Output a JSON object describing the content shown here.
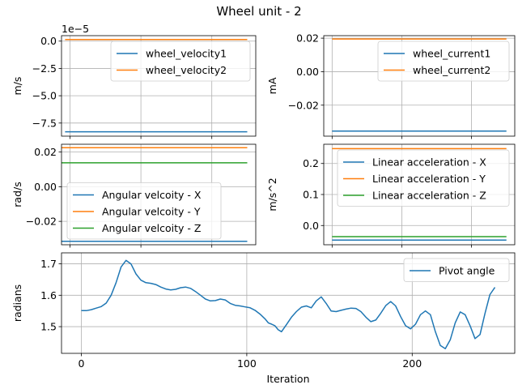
{
  "figure": {
    "title": "Wheel unit - 2"
  },
  "colors": {
    "blue": "#1f77b4",
    "orange": "#ff7f0e",
    "green": "#2ca02c",
    "grid": "#b0b0b0",
    "legend_edge": "#cccccc"
  },
  "chart_data": [
    {
      "id": "p1",
      "type": "line",
      "ylabel": "m/s",
      "offset_text": "1e−5",
      "ylim": [
        -8.7,
        0.5
      ],
      "xlim": [
        -12,
        262
      ],
      "yticks": [
        0.0,
        -2.5,
        -5.0,
        -7.5
      ],
      "ytick_labels": [
        "0.0",
        "−2.5",
        "−5.0",
        "−7.5"
      ],
      "xticks": [
        0,
        100,
        200
      ],
      "show_xtick_labels": false,
      "grid": true,
      "legend": "upper right",
      "series": [
        {
          "name": "wheel_velocity1",
          "color": "#1f77b4",
          "x": [
            -7,
            250
          ],
          "y": [
            -8.3,
            -8.3
          ]
        },
        {
          "name": "wheel_velocity2",
          "color": "#ff7f0e",
          "x": [
            -7,
            250
          ],
          "y": [
            0.15,
            0.15
          ]
        }
      ]
    },
    {
      "id": "p2",
      "type": "line",
      "ylabel": "mA",
      "ylim": [
        -0.0385,
        0.0215
      ],
      "xlim": [
        -12,
        262
      ],
      "yticks": [
        0.02,
        0.0,
        -0.02
      ],
      "ytick_labels": [
        "0.02",
        "0.00",
        "−0.02"
      ],
      "xticks": [
        0,
        100,
        200
      ],
      "show_xtick_labels": false,
      "grid": true,
      "legend": "upper right",
      "series": [
        {
          "name": "wheel_current1",
          "color": "#1f77b4",
          "x": [
            0,
            250
          ],
          "y": [
            -0.0355,
            -0.0355
          ]
        },
        {
          "name": "wheel_current2",
          "color": "#ff7f0e",
          "x": [
            0,
            250
          ],
          "y": [
            0.0195,
            0.0195
          ]
        }
      ]
    },
    {
      "id": "p3",
      "type": "line",
      "ylabel": "rad/s",
      "ylim": [
        -0.0335,
        0.0245
      ],
      "xlim": [
        -12,
        262
      ],
      "yticks": [
        0.02,
        0.0,
        -0.02
      ],
      "ytick_labels": [
        "0.02",
        "0.00",
        "−0.02"
      ],
      "xticks": [
        0,
        100,
        200
      ],
      "show_xtick_labels": false,
      "grid": true,
      "legend": "lower left",
      "series": [
        {
          "name": "Angular velcoity - X",
          "color": "#1f77b4",
          "x": [
            -12,
            250
          ],
          "y": [
            -0.0315,
            -0.0315
          ]
        },
        {
          "name": "Angular velcoity - Y",
          "color": "#ff7f0e",
          "x": [
            -12,
            250
          ],
          "y": [
            0.0225,
            0.0225
          ]
        },
        {
          "name": "Angular velcoity - Z",
          "color": "#2ca02c",
          "x": [
            -12,
            250
          ],
          "y": [
            0.0138,
            0.0138
          ]
        }
      ]
    },
    {
      "id": "p4",
      "type": "line",
      "ylabel": "m/s^2",
      "ylim": [
        -0.062,
        0.262
      ],
      "xlim": [
        -12,
        262
      ],
      "yticks": [
        0.2,
        0.1,
        0.0
      ],
      "ytick_labels": [
        "0.2",
        "0.1",
        "0.0"
      ],
      "xticks": [
        0,
        100,
        200
      ],
      "show_xtick_labels": false,
      "grid": true,
      "legend": "upper right",
      "series": [
        {
          "name": "Linear acceleration - X",
          "color": "#1f77b4",
          "x": [
            0,
            250
          ],
          "y": [
            -0.047,
            -0.047
          ]
        },
        {
          "name": "Linear acceleration - Y",
          "color": "#ff7f0e",
          "x": [
            0,
            250
          ],
          "y": [
            0.248,
            0.248
          ]
        },
        {
          "name": "Linear acceleration - Z",
          "color": "#2ca02c",
          "x": [
            0,
            250
          ],
          "y": [
            -0.036,
            -0.036
          ]
        }
      ]
    },
    {
      "id": "p5",
      "type": "line",
      "xlabel": "Iteration",
      "ylabel": "radians",
      "ylim": [
        1.415,
        1.735
      ],
      "xlim": [
        -12,
        262
      ],
      "yticks": [
        1.7,
        1.6,
        1.5
      ],
      "ytick_labels": [
        "1.7",
        "1.6",
        "1.5"
      ],
      "xticks": [
        0,
        100,
        200
      ],
      "xtick_labels": [
        "0",
        "100",
        "200"
      ],
      "show_xtick_labels": true,
      "grid": true,
      "legend": "upper right",
      "series": [
        {
          "name": "Pivot angle",
          "color": "#1f77b4",
          "x": [
            0,
            3,
            6,
            9,
            12,
            15,
            18,
            21,
            24,
            27,
            30,
            33,
            36,
            39,
            42,
            45,
            48,
            51,
            54,
            57,
            60,
            63,
            66,
            69,
            72,
            75,
            78,
            81,
            84,
            87,
            90,
            93,
            96,
            99,
            102,
            105,
            108,
            111,
            113,
            115,
            117,
            119,
            121,
            124,
            127,
            130,
            133,
            136,
            139,
            142,
            145,
            148,
            151,
            154,
            157,
            160,
            163,
            166,
            169,
            172,
            175,
            178,
            181,
            184,
            187,
            190,
            193,
            196,
            199,
            202,
            205,
            208,
            211,
            214,
            217,
            220,
            223,
            226,
            229,
            232,
            235,
            238,
            241,
            244,
            247,
            250
          ],
          "y": [
            1.551,
            1.551,
            1.554,
            1.559,
            1.564,
            1.575,
            1.6,
            1.64,
            1.69,
            1.711,
            1.7,
            1.668,
            1.648,
            1.64,
            1.638,
            1.634,
            1.626,
            1.62,
            1.617,
            1.619,
            1.624,
            1.626,
            1.622,
            1.612,
            1.6,
            1.588,
            1.582,
            1.583,
            1.588,
            1.585,
            1.574,
            1.568,
            1.566,
            1.563,
            1.56,
            1.552,
            1.54,
            1.525,
            1.512,
            1.508,
            1.503,
            1.49,
            1.484,
            1.507,
            1.53,
            1.548,
            1.562,
            1.566,
            1.56,
            1.582,
            1.595,
            1.574,
            1.55,
            1.548,
            1.552,
            1.556,
            1.559,
            1.558,
            1.548,
            1.53,
            1.516,
            1.521,
            1.543,
            1.567,
            1.58,
            1.566,
            1.532,
            1.503,
            1.493,
            1.508,
            1.538,
            1.55,
            1.538,
            1.484,
            1.44,
            1.43,
            1.458,
            1.512,
            1.547,
            1.538,
            1.503,
            1.462,
            1.475,
            1.542,
            1.602,
            1.625
          ]
        }
      ]
    }
  ]
}
